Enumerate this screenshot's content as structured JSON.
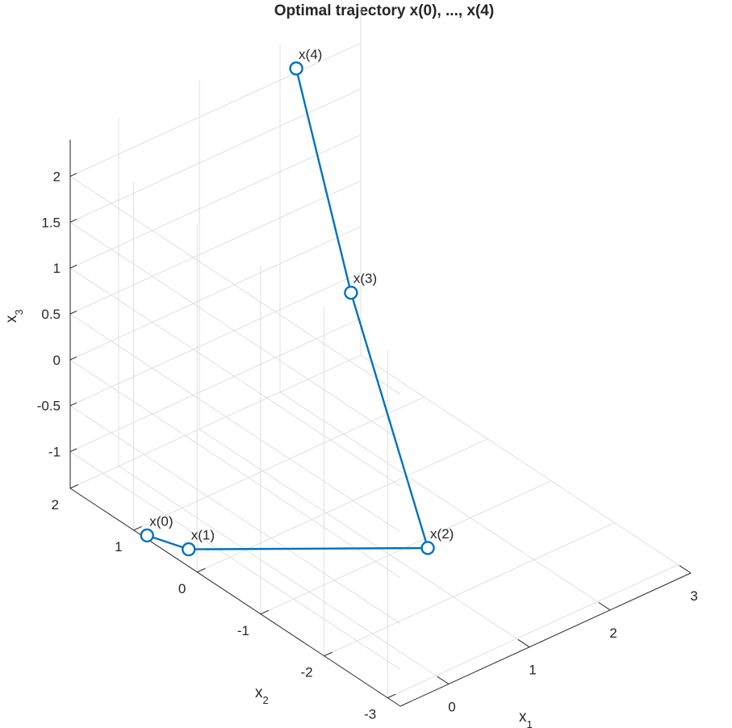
{
  "chart_data": {
    "type": "line",
    "title": "Optimal trajectory x(0), ..., x(4)",
    "xlabel": "x",
    "xlabel_sub": "1",
    "ylabel": "x",
    "ylabel_sub": "2",
    "zlabel": "x",
    "zlabel_sub": "3",
    "xlim": [
      -0.6,
      3
    ],
    "ylim": [
      -3.2,
      2
    ],
    "zlim": [
      -1.4,
      2.4
    ],
    "xticks": [
      0,
      1,
      2,
      3
    ],
    "yticks": [
      -3,
      -2,
      -1,
      0,
      1,
      2
    ],
    "zticks": [
      -1,
      -0.5,
      0,
      0.5,
      1,
      1.5,
      2
    ],
    "xtick_labels": [
      "0",
      "1",
      "2",
      "3"
    ],
    "ytick_labels": [
      "-3",
      "-2",
      "-1",
      "0",
      "1",
      "2"
    ],
    "ztick_labels": [
      "-1",
      "-0.5",
      "0",
      "0.5",
      "1",
      "1.5",
      "2"
    ],
    "grid": true,
    "series": [
      {
        "color": "#0072bd",
        "marker": "circle",
        "points": [
          {
            "x": -0.56,
            "y": 0.84,
            "z": -1.4,
            "label": "x(0)"
          },
          {
            "x": -0.43,
            "y": 0.35,
            "z": -1.38,
            "label": "x(1)"
          },
          {
            "x": -0.11,
            "y": -3.01,
            "z": 0.04,
            "label": "x(2)"
          },
          {
            "x": 1.18,
            "y": -0.16,
            "z": 1.0,
            "label": "x(3)"
          },
          {
            "x": 1.76,
            "y": 1.44,
            "z": 2.48,
            "label": "x(4)"
          }
        ]
      }
    ]
  }
}
